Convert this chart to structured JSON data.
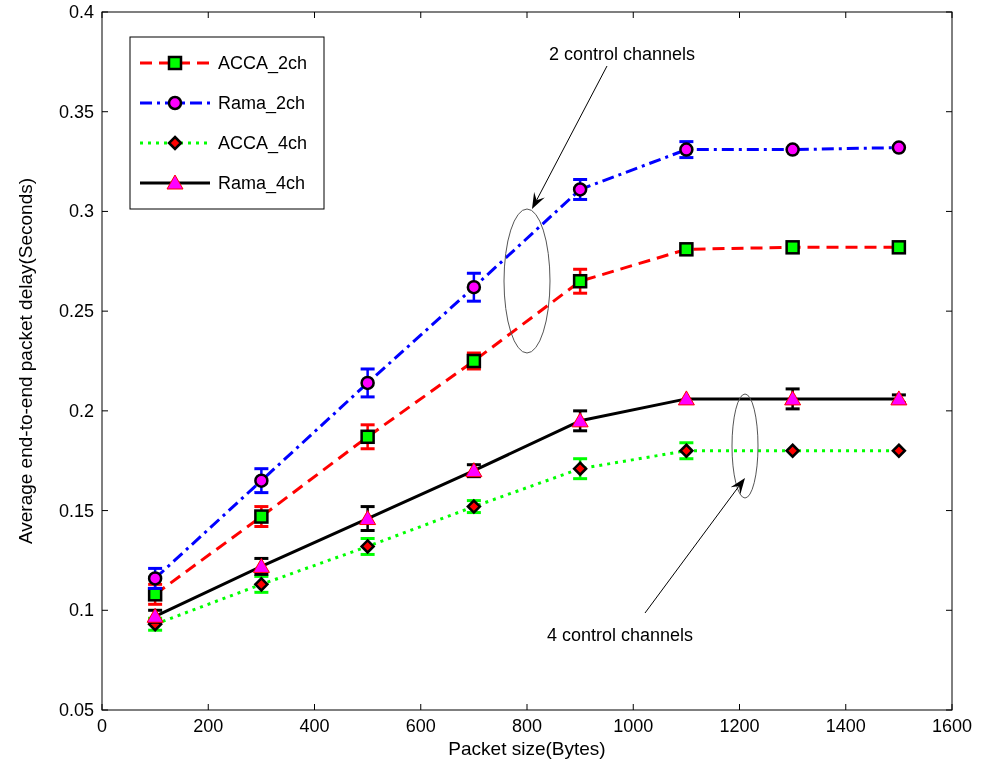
{
  "chart_data": {
    "type": "line",
    "xlabel": "Packet size(Bytes)",
    "ylabel": "Average end-to-end packet delay(Seconds)",
    "x": [
      100,
      300,
      500,
      700,
      900,
      1100,
      1300,
      1500
    ],
    "xlim": [
      0,
      1600
    ],
    "xticks": [
      0,
      200,
      400,
      600,
      800,
      1000,
      1200,
      1400,
      1600
    ],
    "ylim": [
      0.05,
      0.4
    ],
    "yticks": [
      0.05,
      0.1,
      0.15,
      0.2,
      0.25,
      0.3,
      0.35,
      0.4
    ],
    "legend": "top left",
    "series": [
      {
        "name": "ACCA_2ch",
        "color": "#ff0000",
        "line_style": "dashed",
        "marker": "square",
        "values": [
          0.108,
          0.147,
          0.187,
          0.225,
          0.265,
          0.281,
          0.282,
          0.282
        ],
        "errors": [
          0.005,
          0.005,
          0.006,
          0.004,
          0.006,
          null,
          null,
          null
        ]
      },
      {
        "name": "Rama_2ch",
        "color": "#0000ff",
        "line_style": "dashdot",
        "marker": "circle",
        "values": [
          0.116,
          0.165,
          0.214,
          0.262,
          0.311,
          0.331,
          0.331,
          0.332
        ],
        "errors": [
          0.005,
          0.006,
          0.007,
          0.007,
          0.005,
          0.004,
          null,
          null
        ]
      },
      {
        "name": "ACCA_4ch",
        "color": "#00ff00",
        "line_style": "dotted",
        "marker": "diamond",
        "values": [
          0.093,
          0.113,
          0.132,
          0.152,
          0.171,
          0.18,
          0.18,
          0.18
        ],
        "errors": [
          0.003,
          0.004,
          0.004,
          0.003,
          0.005,
          0.004,
          null,
          null
        ]
      },
      {
        "name": "Rama_4ch",
        "color": "#000000",
        "line_style": "solid",
        "marker": "triangle",
        "values": [
          0.097,
          0.122,
          0.146,
          0.17,
          0.195,
          0.206,
          0.206,
          0.206
        ],
        "errors": [
          0.003,
          0.004,
          0.006,
          0.003,
          0.005,
          null,
          0.005,
          0.002
        ]
      }
    ],
    "annotations": [
      "2 control channels",
      "4 control channels"
    ]
  }
}
